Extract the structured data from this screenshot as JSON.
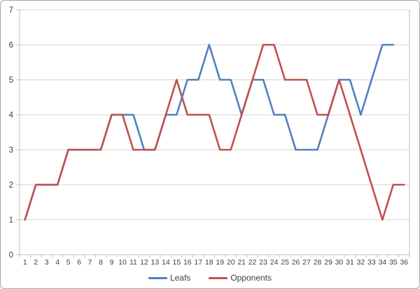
{
  "chart_data": {
    "type": "line",
    "x": [
      1,
      2,
      3,
      4,
      5,
      6,
      7,
      8,
      9,
      10,
      11,
      12,
      13,
      14,
      15,
      16,
      17,
      18,
      19,
      20,
      21,
      22,
      23,
      24,
      25,
      26,
      27,
      28,
      29,
      30,
      31,
      32,
      33,
      34,
      35,
      36
    ],
    "series": [
      {
        "name": "Leafs",
        "color": "#4F81BD",
        "values": [
          1,
          2,
          2,
          2,
          3,
          3,
          3,
          3,
          4,
          4,
          4,
          3,
          3,
          4,
          4,
          5,
          5,
          6,
          5,
          5,
          4,
          5,
          5,
          4,
          4,
          3,
          3,
          3,
          4,
          5,
          5,
          4,
          5,
          6,
          6,
          null
        ]
      },
      {
        "name": "Opponents",
        "color": "#C0504D",
        "values": [
          1,
          2,
          2,
          2,
          3,
          3,
          3,
          3,
          4,
          4,
          3,
          3,
          3,
          4,
          5,
          4,
          4,
          4,
          3,
          3,
          4,
          5,
          6,
          6,
          5,
          5,
          5,
          4,
          4,
          5,
          4,
          3,
          2,
          1,
          2,
          2
        ]
      }
    ],
    "title": "",
    "xlabel": "",
    "ylabel": "",
    "ylim": [
      0,
      7
    ],
    "yticks": [
      0,
      1,
      2,
      3,
      4,
      5,
      6,
      7
    ],
    "xtick_labels": [
      "1",
      "2",
      "3",
      "4",
      "5",
      "6",
      "7",
      "8",
      "9",
      "10",
      "11",
      "12",
      "13",
      "14",
      "15",
      "16",
      "17",
      "18",
      "19",
      "20",
      "21",
      "22",
      "23",
      "24",
      "25",
      "26",
      "27",
      "28",
      "29",
      "30",
      "31",
      "32",
      "33",
      "34",
      "35",
      "36"
    ],
    "grid": true,
    "legend_position": "bottom"
  },
  "legend": {
    "items": [
      {
        "label": "Leafs",
        "color": "#4F81BD"
      },
      {
        "label": "Opponents",
        "color": "#C0504D"
      }
    ]
  },
  "style": {
    "gridline_color": "#d3d3d3",
    "axis_color": "#bfbfbf",
    "tick_color": "#bfbfbf",
    "label_color": "#3f3f3f",
    "line_width": 2.6
  }
}
